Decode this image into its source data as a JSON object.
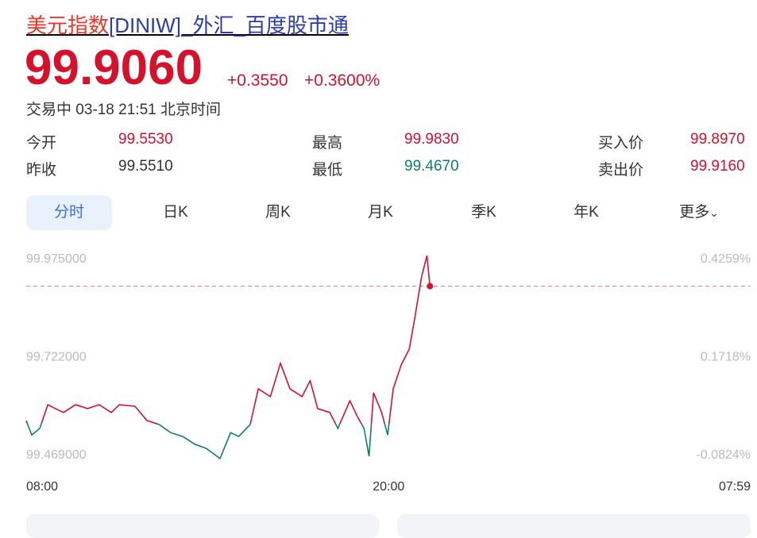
{
  "header": {
    "title_name": "美元指数",
    "title_rest": "[DINIW]_外汇_百度股市通"
  },
  "quote": {
    "price": "99.9060",
    "change": "+0.3550",
    "change_pct": "+0.3600%",
    "status": "交易中 03-18 21:51 北京时间"
  },
  "stats": [
    {
      "label": "今开",
      "value": "99.5530"
    },
    {
      "label": "昨收",
      "value": "99.5510"
    },
    {
      "label": "最高",
      "value": "99.9830"
    },
    {
      "label": "最低",
      "value": "99.4670"
    },
    {
      "label": "买入价",
      "value": "99.8970"
    },
    {
      "label": "卖出价",
      "value": "99.9160"
    }
  ],
  "tabs": [
    "分时",
    "日K",
    "周K",
    "月K",
    "季K",
    "年K",
    "更多"
  ],
  "chart_data": {
    "type": "line",
    "x": [
      0,
      11,
      27,
      43,
      58,
      74,
      98,
      122,
      145,
      169,
      185,
      216,
      240,
      264,
      287,
      311,
      335,
      358,
      385,
      406,
      422,
      445,
      461,
      485,
      505,
      524,
      548,
      564,
      579,
      603,
      619,
      643,
      658,
      671,
      681,
      690,
      706,
      718,
      729,
      745,
      761,
      772,
      785,
      796,
      802
    ],
    "series": [
      {
        "color": "#d6112c",
        "values": [
          99.559,
          99.522,
          99.539,
          99.6,
          99.59,
          99.58,
          99.6,
          99.59,
          99.6,
          99.58,
          99.6,
          99.596,
          99.559,
          99.549,
          99.528,
          99.518,
          99.498,
          99.487,
          99.461,
          99.528,
          99.518,
          99.549,
          99.641,
          99.621,
          99.707,
          99.641,
          99.621,
          99.662,
          99.59,
          99.58,
          99.539,
          99.61,
          99.569,
          99.539,
          99.467,
          99.631,
          99.58,
          99.522,
          99.641,
          99.703,
          99.744,
          99.825,
          99.928,
          99.985,
          99.906
        ]
      }
    ],
    "down_color": "#0d7f6a",
    "xlim": [
      0,
      1439
    ],
    "xticks": [
      {
        "value": 0,
        "label": "08:00"
      },
      {
        "value": 720,
        "label": "20:00"
      },
      {
        "value": 1439,
        "label": "07:59"
      }
    ],
    "ylim": [
      99.469,
      99.975
    ],
    "yticks": [
      {
        "value": 99.469,
        "label": "99.469000"
      },
      {
        "value": 99.722,
        "label": "99.722000"
      },
      {
        "value": 99.975,
        "label": "99.975000"
      }
    ],
    "y2lim": [
      -0.0824,
      0.4259
    ],
    "y2ticks": [
      {
        "value": -0.0824,
        "label": "-0.0824%"
      },
      {
        "value": 0.1718,
        "label": "0.1718%"
      },
      {
        "value": 0.4259,
        "label": "0.4259%"
      }
    ]
  }
}
